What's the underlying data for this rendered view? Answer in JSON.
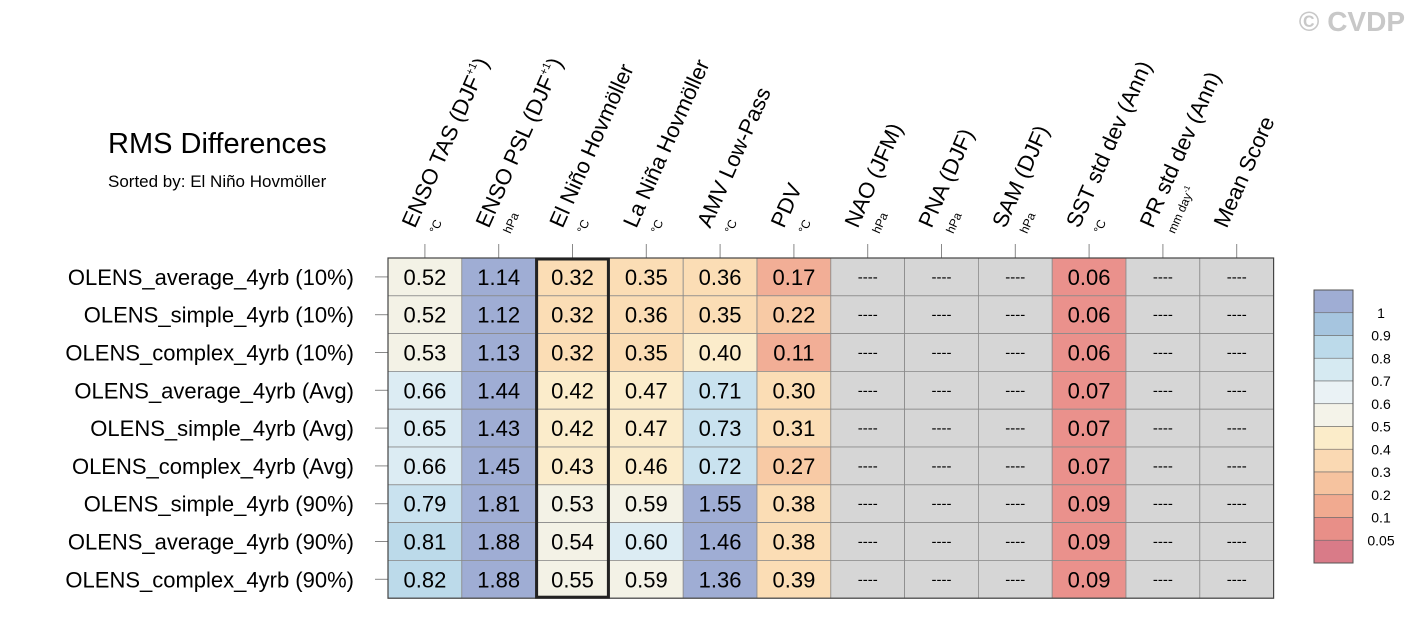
{
  "watermark": "© CVDP",
  "chart_data": {
    "type": "heatmap",
    "title": "RMS Differences",
    "subtitle": "Sorted by: El Niño Hovmöller",
    "columns": [
      {
        "name": "ENSO TAS (DJF",
        "sup": "+1",
        "close": ")",
        "unit": "°C"
      },
      {
        "name": "ENSO PSL (DJF",
        "sup": "+1",
        "close": ")",
        "unit": "hPa"
      },
      {
        "name": "El Niño Hovmöller",
        "unit": "°C"
      },
      {
        "name": "La Niña Hovmöller",
        "unit": "°C"
      },
      {
        "name": "AMV Low-Pass",
        "unit": "°C"
      },
      {
        "name": "PDV",
        "unit": "°C"
      },
      {
        "name": "NAO (JFM)",
        "unit": "hPa"
      },
      {
        "name": "PNA (DJF)",
        "unit": "hPa"
      },
      {
        "name": "SAM (DJF)",
        "unit": "hPa"
      },
      {
        "name": "SST std dev (Ann)",
        "unit": "°C"
      },
      {
        "name": "PR std dev (Ann)",
        "unit": "mm day",
        "unit_sup": "-1"
      },
      {
        "name": "Mean Score",
        "unit": ""
      }
    ],
    "rows": [
      {
        "name": "OLENS_average_4yrb (10%)",
        "values": [
          "0.52",
          "1.14",
          "0.32",
          "0.35",
          "0.36",
          "0.17",
          "----",
          "----",
          "----",
          "0.06",
          "----",
          "----"
        ]
      },
      {
        "name": "OLENS_simple_4yrb (10%)",
        "values": [
          "0.52",
          "1.12",
          "0.32",
          "0.36",
          "0.35",
          "0.22",
          "----",
          "----",
          "----",
          "0.06",
          "----",
          "----"
        ]
      },
      {
        "name": "OLENS_complex_4yrb (10%)",
        "values": [
          "0.53",
          "1.13",
          "0.32",
          "0.35",
          "0.40",
          "0.11",
          "----",
          "----",
          "----",
          "0.06",
          "----",
          "----"
        ]
      },
      {
        "name": "OLENS_average_4yrb (Avg)",
        "values": [
          "0.66",
          "1.44",
          "0.42",
          "0.47",
          "0.71",
          "0.30",
          "----",
          "----",
          "----",
          "0.07",
          "----",
          "----"
        ]
      },
      {
        "name": "OLENS_simple_4yrb (Avg)",
        "values": [
          "0.65",
          "1.43",
          "0.42",
          "0.47",
          "0.73",
          "0.31",
          "----",
          "----",
          "----",
          "0.07",
          "----",
          "----"
        ]
      },
      {
        "name": "OLENS_complex_4yrb (Avg)",
        "values": [
          "0.66",
          "1.45",
          "0.43",
          "0.46",
          "0.72",
          "0.27",
          "----",
          "----",
          "----",
          "0.07",
          "----",
          "----"
        ]
      },
      {
        "name": "OLENS_simple_4yrb (90%)",
        "values": [
          "0.79",
          "1.81",
          "0.53",
          "0.59",
          "1.55",
          "0.38",
          "----",
          "----",
          "----",
          "0.09",
          "----",
          "----"
        ]
      },
      {
        "name": "OLENS_average_4yrb (90%)",
        "values": [
          "0.81",
          "1.88",
          "0.54",
          "0.60",
          "1.46",
          "0.38",
          "----",
          "----",
          "----",
          "0.09",
          "----",
          "----"
        ]
      },
      {
        "name": "OLENS_complex_4yrb (90%)",
        "values": [
          "0.82",
          "1.88",
          "0.55",
          "0.59",
          "1.36",
          "0.39",
          "----",
          "----",
          "----",
          "0.09",
          "----",
          "----"
        ]
      }
    ],
    "highlight_column": 2,
    "missing_value": "----",
    "missing_color": "#d6d6d6",
    "colorbar": {
      "labels": [
        "1",
        "0.9",
        "0.8",
        "0.7",
        "0.6",
        "0.5",
        "0.4",
        "0.3",
        "0.2",
        "0.1",
        "0.05"
      ],
      "colors": [
        "#9fadd4",
        "#a6c5df",
        "#bcdaea",
        "#d6eaf2",
        "#eaf2f5",
        "#f4f3e9",
        "#fbecc9",
        "#fad9b3",
        "#f6c39f",
        "#f1aa90",
        "#e88f88",
        "#d97b88"
      ]
    },
    "bins": [
      {
        "min": 1.0,
        "color": "#9fadd4"
      },
      {
        "min": 0.9,
        "color": "#a6c5df"
      },
      {
        "min": 0.8,
        "color": "#bcdaea"
      },
      {
        "min": 0.7,
        "color": "#c9e2ef"
      },
      {
        "min": 0.6,
        "color": "#dcecf3"
      },
      {
        "min": 0.5,
        "color": "#f3f2e6"
      },
      {
        "min": 0.4,
        "color": "#fbeccb"
      },
      {
        "min": 0.3,
        "color": "#fbddb5"
      },
      {
        "min": 0.2,
        "color": "#f8caa5"
      },
      {
        "min": 0.1,
        "color": "#f2ae96"
      },
      {
        "min": 0.05,
        "color": "#ea918c"
      },
      {
        "min": 0.0,
        "color": "#d97b88"
      }
    ]
  }
}
